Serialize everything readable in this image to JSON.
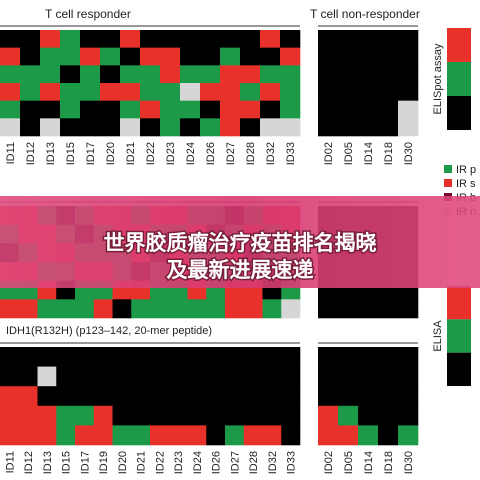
{
  "titles": [
    "T cell responder",
    "T cell non-responder"
  ],
  "palette": {
    "k": "#000000",
    "r": "#e8312a",
    "g": "#1d9a48",
    "w": "#d6d6d6"
  },
  "heatmaps": [
    {
      "left": {
        "columns": [
          "ID11",
          "ID12",
          "ID13",
          "ID15",
          "ID17",
          "ID20",
          "ID21",
          "ID22",
          "ID23",
          "ID24",
          "ID26",
          "ID27",
          "ID28",
          "ID32",
          "ID33"
        ],
        "rows": [
          "kkrgkkrkkkkkkrk",
          "rkggrgkrrkkgkkr",
          "gggkgkggrggrrgg",
          "rgrggrrggwrrgrg",
          "gkkgkkgrggkrrkg",
          "wkwkkkwkgkgrkww"
        ]
      },
      "right": {
        "columns": [
          "ID02",
          "ID05",
          "ID14",
          "ID18",
          "ID30"
        ],
        "rows": [
          "kkkkk",
          "kkkkk",
          "kkkkk",
          "kkkkk",
          "kkkkw",
          "kkkkw"
        ]
      }
    },
    {
      "left": {
        "rows": [
          "rrgkgrrgrrggkgrr",
          "grrgkgrrggrkgrgr",
          "kgrrgggrkrggrkgg",
          "rrggrrgkgrrgggrg",
          "ggrkggrrggrgrrkg",
          "rrgggrkgggggrrgw"
        ]
      },
      "right": {
        "rows": [
          "kkkkk",
          "kkkkk",
          "kkkkk",
          "kkkkk",
          "kkkkk",
          "kkkkk"
        ]
      }
    },
    {
      "label": "IDH1(R132H) (p123–142, 20-mer peptide)",
      "left": {
        "columns": [
          "ID11",
          "ID12",
          "ID13",
          "ID15",
          "ID17",
          "ID19",
          "ID20",
          "ID21",
          "ID22",
          "ID23",
          "ID24",
          "ID26",
          "ID27",
          "ID28",
          "ID32",
          "ID33"
        ],
        "rows": [
          "kkkkkkkkkkkkkkkk",
          "kkwkkkkkkkkkkkkk",
          "rrkkkkkkkkkkkkkk",
          "rrrggrkkkkkkkkkk",
          "rrrgrrggrrrkgrrk"
        ]
      },
      "right": {
        "columns": [
          "ID02",
          "ID05",
          "ID14",
          "ID18",
          "ID30"
        ],
        "rows": [
          "kkkkk",
          "kkkkk",
          "kkkkk",
          "rgkkk",
          "rrgkg"
        ]
      }
    }
  ],
  "scales": [
    {
      "label": "ELISpot assay",
      "colors": [
        "r",
        "g",
        "k"
      ]
    },
    {
      "label": "ELISA",
      "colors": [
        "r",
        "g",
        "k"
      ]
    }
  ],
  "legend": [
    {
      "label": "IR p",
      "color": "g"
    },
    {
      "label": "IR s",
      "color": "r"
    },
    {
      "label": "IR b",
      "color": "#7a1030"
    },
    {
      "label": "IR n",
      "color": "w"
    }
  ],
  "banner": [
    "世界胶质瘤治疗疫苗排名揭晓",
    "及最新进展速递"
  ]
}
